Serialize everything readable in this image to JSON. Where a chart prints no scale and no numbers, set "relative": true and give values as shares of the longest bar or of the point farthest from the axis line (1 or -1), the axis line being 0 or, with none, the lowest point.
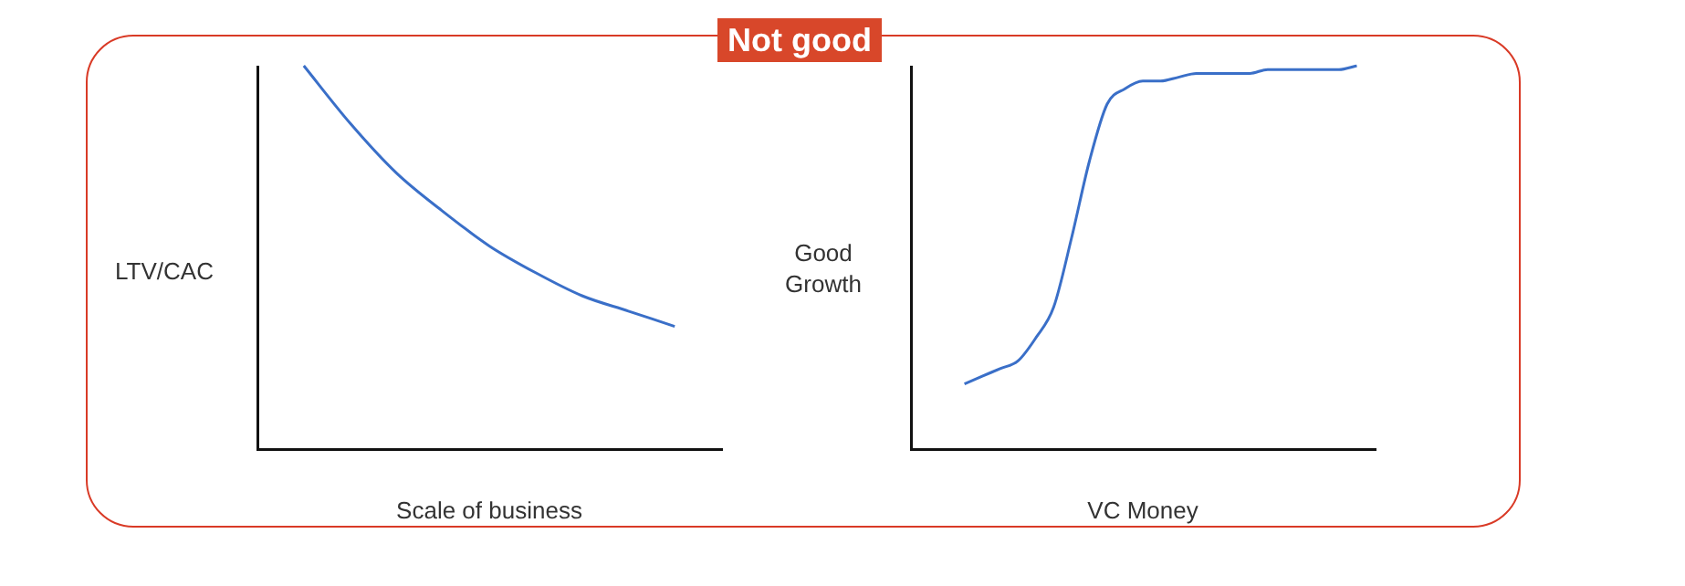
{
  "chart_data": [
    {
      "type": "line",
      "title": "Not good",
      "xlabel": "Scale of business",
      "ylabel": "LTV/CAC",
      "relative": true,
      "grid": false,
      "legend": false,
      "marker": "none",
      "categories": [
        null,
        null,
        null,
        null,
        null,
        null,
        null,
        null,
        null,
        null,
        null
      ],
      "color": "#3a6fc8",
      "values": [
        null,
        1,
        0.85,
        0.72,
        0.62,
        0.53,
        0.46,
        0.4,
        0.36,
        0.32,
        null
      ]
    },
    {
      "type": "line",
      "xlabel": "VC Money",
      "ylabel": "Good Growth",
      "relative": true,
      "grid": false,
      "legend": false,
      "marker": "none",
      "categories": [
        null,
        null,
        null,
        null,
        null,
        null,
        null,
        null,
        null,
        null,
        null,
        null,
        null,
        null,
        null,
        null,
        null,
        null,
        null,
        null,
        null,
        null,
        null,
        null,
        null,
        null,
        null
      ],
      "color": "#3a6fc8",
      "values": [
        null,
        null,
        null,
        0.17,
        0.19,
        0.21,
        0.23,
        0.29,
        0.37,
        0.55,
        0.75,
        0.9,
        0.94,
        0.96,
        0.96,
        0.97,
        0.98,
        0.98,
        0.98,
        0.98,
        0.99,
        0.99,
        0.99,
        0.99,
        0.99,
        1,
        null
      ]
    }
  ]
}
